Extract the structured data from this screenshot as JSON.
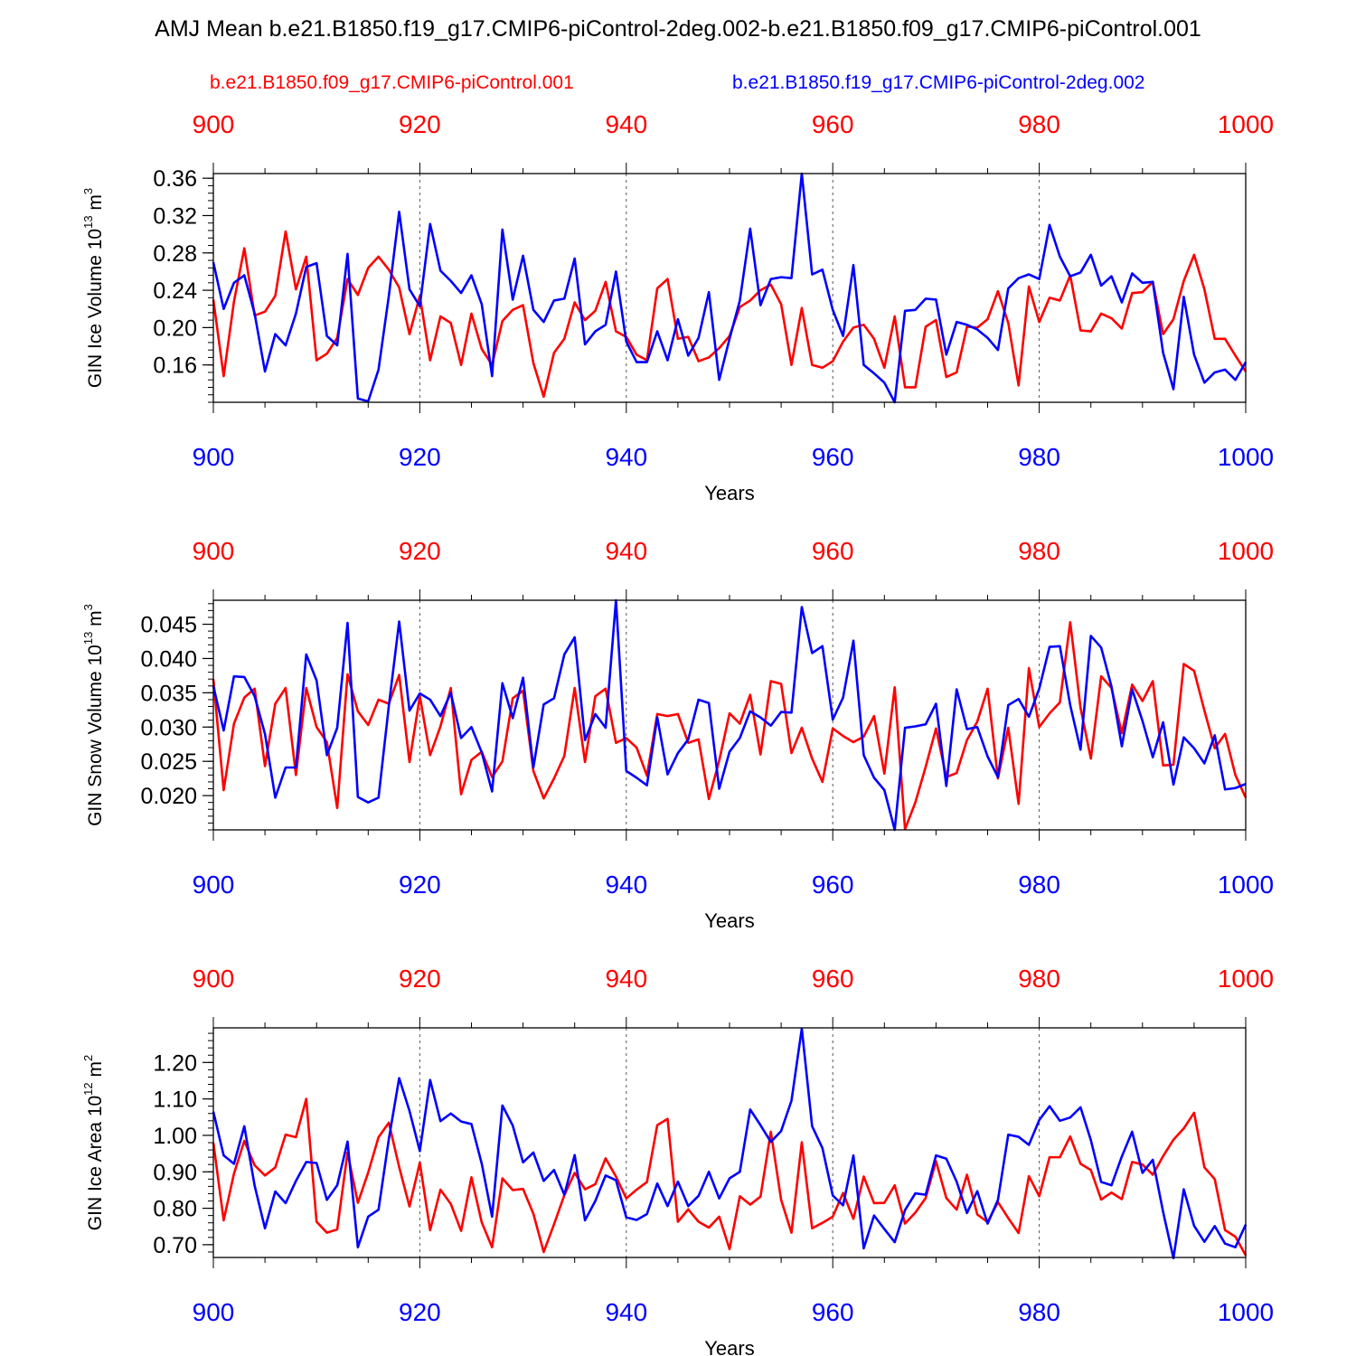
{
  "title": "AMJ Mean b.e21.B1850.f19_g17.CMIP6-piControl-2deg.002-b.e21.B1850.f09_g17.CMIP6-piControl.001",
  "legend": {
    "red_case": "b.e21.B1850.f09_g17.CMIP6-piControl.001",
    "blue_case": "b.e21.B1850.f19_g17.CMIP6-piControl-2deg.002"
  },
  "colors": {
    "red": "#ff0000",
    "blue": "#0000ff"
  },
  "chart_data": [
    {
      "type": "line",
      "id": "ice-volume",
      "ylabel": "GIN Ice Volume 10",
      "ylabel_sup": "13",
      "ylabel_unit": "m",
      "ylabel_unit_sup": "3",
      "xlabel": "Years",
      "xlim": [
        900,
        1000
      ],
      "ylim": [
        0.12,
        0.365
      ],
      "yticks": [
        "0.16",
        "0.20",
        "0.24",
        "0.28",
        "0.32",
        "0.36"
      ],
      "xticks": [
        "900",
        "920",
        "940",
        "960",
        "980",
        "1000"
      ],
      "x": [
        900,
        901,
        902,
        903,
        904,
        905,
        906,
        907,
        908,
        909,
        910,
        911,
        912,
        913,
        914,
        915,
        916,
        917,
        918,
        919,
        920,
        921,
        922,
        923,
        924,
        925,
        926,
        927,
        928,
        929,
        930,
        931,
        932,
        933,
        934,
        935,
        936,
        937,
        938,
        939,
        940,
        941,
        942,
        943,
        944,
        945,
        946,
        947,
        948,
        949,
        950,
        951,
        952,
        953,
        954,
        955,
        956,
        957,
        958,
        959,
        960,
        961,
        962,
        963,
        964,
        965,
        966,
        967,
        968,
        969,
        970,
        971,
        972,
        973,
        974,
        975,
        976,
        977,
        978,
        979,
        980,
        981,
        982,
        983,
        984,
        985,
        986,
        987,
        988,
        989,
        990,
        991,
        992,
        993,
        994,
        995,
        996,
        997,
        998,
        999,
        1000
      ],
      "series": [
        {
          "name": "b.e21.B1850.f09_g17.CMIP6-piControl.001",
          "color": "red",
          "values": [
            0.23,
            0.148,
            0.228,
            0.285,
            0.213,
            0.217,
            0.234,
            0.303,
            0.241,
            0.276,
            0.165,
            0.172,
            0.189,
            0.252,
            0.235,
            0.264,
            0.276,
            0.262,
            0.243,
            0.193,
            0.234,
            0.165,
            0.212,
            0.205,
            0.16,
            0.215,
            0.177,
            0.16,
            0.207,
            0.219,
            0.224,
            0.162,
            0.126,
            0.173,
            0.188,
            0.227,
            0.208,
            0.218,
            0.249,
            0.196,
            0.19,
            0.171,
            0.165,
            0.242,
            0.252,
            0.188,
            0.19,
            0.164,
            0.168,
            0.178,
            0.191,
            0.222,
            0.229,
            0.24,
            0.246,
            0.225,
            0.16,
            0.221,
            0.16,
            0.157,
            0.164,
            0.185,
            0.2,
            0.203,
            0.188,
            0.157,
            0.212,
            0.136,
            0.136,
            0.201,
            0.208,
            0.147,
            0.152,
            0.201,
            0.2,
            0.209,
            0.239,
            0.205,
            0.138,
            0.244,
            0.206,
            0.232,
            0.229,
            0.256,
            0.197,
            0.196,
            0.215,
            0.21,
            0.199,
            0.237,
            0.238,
            0.249,
            0.193,
            0.209,
            0.25,
            0.278,
            0.241,
            0.188,
            0.188,
            0.17,
            0.153
          ]
        },
        {
          "name": "b.e21.B1850.f19_g17.CMIP6-piControl-2deg.002",
          "color": "blue",
          "values": [
            0.27,
            0.22,
            0.248,
            0.256,
            0.215,
            0.153,
            0.193,
            0.181,
            0.215,
            0.265,
            0.269,
            0.191,
            0.181,
            0.279,
            0.124,
            0.121,
            0.155,
            0.234,
            0.324,
            0.241,
            0.223,
            0.311,
            0.261,
            0.25,
            0.237,
            0.256,
            0.225,
            0.148,
            0.305,
            0.23,
            0.277,
            0.219,
            0.206,
            0.229,
            0.231,
            0.274,
            0.182,
            0.196,
            0.203,
            0.26,
            0.185,
            0.163,
            0.163,
            0.196,
            0.165,
            0.209,
            0.17,
            0.189,
            0.238,
            0.144,
            0.188,
            0.229,
            0.306,
            0.224,
            0.252,
            0.254,
            0.253,
            0.365,
            0.257,
            0.262,
            0.219,
            0.191,
            0.267,
            0.16,
            0.151,
            0.141,
            0.12,
            0.218,
            0.219,
            0.231,
            0.23,
            0.171,
            0.206,
            0.203,
            0.198,
            0.189,
            0.176,
            0.242,
            0.253,
            0.257,
            0.252,
            0.31,
            0.276,
            0.255,
            0.259,
            0.278,
            0.245,
            0.255,
            0.227,
            0.258,
            0.248,
            0.249,
            0.173,
            0.134,
            0.233,
            0.171,
            0.141,
            0.152,
            0.155,
            0.144,
            0.163
          ]
        }
      ]
    },
    {
      "type": "line",
      "id": "snow-volume",
      "ylabel": "GIN Snow Volume 10",
      "ylabel_sup": "13",
      "ylabel_unit": "m",
      "ylabel_unit_sup": "3",
      "xlabel": "Years",
      "xlim": [
        900,
        1000
      ],
      "ylim": [
        0.015,
        0.0485
      ],
      "yticks": [
        "0.020",
        "0.025",
        "0.030",
        "0.035",
        "0.040",
        "0.045"
      ],
      "xticks": [
        "900",
        "920",
        "940",
        "960",
        "980",
        "1000"
      ],
      "x": [
        900,
        901,
        902,
        903,
        904,
        905,
        906,
        907,
        908,
        909,
        910,
        911,
        912,
        913,
        914,
        915,
        916,
        917,
        918,
        919,
        920,
        921,
        922,
        923,
        924,
        925,
        926,
        927,
        928,
        929,
        930,
        931,
        932,
        933,
        934,
        935,
        936,
        937,
        938,
        939,
        940,
        941,
        942,
        943,
        944,
        945,
        946,
        947,
        948,
        949,
        950,
        951,
        952,
        953,
        954,
        955,
        956,
        957,
        958,
        959,
        960,
        961,
        962,
        963,
        964,
        965,
        966,
        967,
        968,
        969,
        970,
        971,
        972,
        973,
        974,
        975,
        976,
        977,
        978,
        979,
        980,
        981,
        982,
        983,
        984,
        985,
        986,
        987,
        988,
        989,
        990,
        991,
        992,
        993,
        994,
        995,
        996,
        997,
        998,
        999,
        1000
      ],
      "series": [
        {
          "name": "b.e21.B1850.f09_g17.CMIP6-piControl.001",
          "color": "red",
          "values": [
            0.037,
            0.0208,
            0.0305,
            0.0343,
            0.0356,
            0.0243,
            0.0334,
            0.0357,
            0.023,
            0.0357,
            0.03,
            0.0278,
            0.0182,
            0.0377,
            0.0323,
            0.0303,
            0.034,
            0.0334,
            0.0376,
            0.0249,
            0.0345,
            0.0259,
            0.0301,
            0.0357,
            0.0202,
            0.0252,
            0.0264,
            0.0227,
            0.025,
            0.0342,
            0.0353,
            0.0236,
            0.0196,
            0.0225,
            0.0258,
            0.0357,
            0.0249,
            0.0345,
            0.0356,
            0.0277,
            0.0284,
            0.027,
            0.0229,
            0.0319,
            0.0316,
            0.0319,
            0.0277,
            0.0282,
            0.0195,
            0.0251,
            0.032,
            0.0305,
            0.0347,
            0.026,
            0.0367,
            0.0363,
            0.0262,
            0.0299,
            0.0254,
            0.022,
            0.0298,
            0.0287,
            0.0278,
            0.0286,
            0.0316,
            0.0232,
            0.0358,
            0.0151,
            0.019,
            0.0242,
            0.0298,
            0.0227,
            0.0233,
            0.0281,
            0.0308,
            0.0356,
            0.0225,
            0.0299,
            0.0188,
            0.0386,
            0.03,
            0.032,
            0.0336,
            0.0453,
            0.0328,
            0.0254,
            0.0374,
            0.0357,
            0.0291,
            0.0362,
            0.0338,
            0.0367,
            0.0244,
            0.0245,
            0.0392,
            0.0382,
            0.0324,
            0.0269,
            0.029,
            0.023,
            0.0197
          ]
        },
        {
          "name": "b.e21.B1850.f19_g17.CMIP6-piControl-2deg.002",
          "color": "blue",
          "values": [
            0.036,
            0.0295,
            0.0374,
            0.0373,
            0.0345,
            0.029,
            0.0197,
            0.0241,
            0.0241,
            0.0406,
            0.0368,
            0.0259,
            0.0299,
            0.0452,
            0.0198,
            0.019,
            0.0197,
            0.0331,
            0.0454,
            0.0324,
            0.0349,
            0.034,
            0.0316,
            0.035,
            0.0284,
            0.03,
            0.0263,
            0.0206,
            0.0364,
            0.0313,
            0.0372,
            0.0241,
            0.0333,
            0.0342,
            0.0406,
            0.0431,
            0.0281,
            0.0319,
            0.0299,
            0.0485,
            0.0236,
            0.0226,
            0.0215,
            0.0314,
            0.0231,
            0.0262,
            0.0282,
            0.034,
            0.0335,
            0.021,
            0.0264,
            0.0284,
            0.0323,
            0.0314,
            0.0302,
            0.0322,
            0.0321,
            0.0475,
            0.0408,
            0.0418,
            0.0311,
            0.0343,
            0.0426,
            0.0259,
            0.0226,
            0.0208,
            0.015,
            0.0299,
            0.0301,
            0.0304,
            0.0334,
            0.0214,
            0.0355,
            0.0297,
            0.03,
            0.0257,
            0.0227,
            0.0332,
            0.0341,
            0.0315,
            0.0356,
            0.0417,
            0.0418,
            0.0332,
            0.0267,
            0.0433,
            0.0416,
            0.0359,
            0.0272,
            0.0355,
            0.0309,
            0.0256,
            0.0307,
            0.0216,
            0.0285,
            0.0269,
            0.0247,
            0.0288,
            0.0209,
            0.0211,
            0.0217
          ]
        }
      ]
    },
    {
      "type": "line",
      "id": "ice-area",
      "ylabel": "GIN Ice Area 10",
      "ylabel_sup": "12",
      "ylabel_unit": "m",
      "ylabel_unit_sup": "2",
      "xlabel": "Years",
      "xlim": [
        900,
        1000
      ],
      "ylim": [
        0.665,
        1.295
      ],
      "yticks": [
        "0.70",
        "0.80",
        "0.90",
        "1.00",
        "1.10",
        "1.20"
      ],
      "xticks": [
        "900",
        "920",
        "940",
        "960",
        "980",
        "1000"
      ],
      "x": [
        900,
        901,
        902,
        903,
        904,
        905,
        906,
        907,
        908,
        909,
        910,
        911,
        912,
        913,
        914,
        915,
        916,
        917,
        918,
        919,
        920,
        921,
        922,
        923,
        924,
        925,
        926,
        927,
        928,
        929,
        930,
        931,
        932,
        933,
        934,
        935,
        936,
        937,
        938,
        939,
        940,
        941,
        942,
        943,
        944,
        945,
        946,
        947,
        948,
        949,
        950,
        951,
        952,
        953,
        954,
        955,
        956,
        957,
        958,
        959,
        960,
        961,
        962,
        963,
        964,
        965,
        966,
        967,
        968,
        969,
        970,
        971,
        972,
        973,
        974,
        975,
        976,
        977,
        978,
        979,
        980,
        981,
        982,
        983,
        984,
        985,
        986,
        987,
        988,
        989,
        990,
        991,
        992,
        993,
        994,
        995,
        996,
        997,
        998,
        999,
        1000
      ],
      "series": [
        {
          "name": "b.e21.B1850.f09_g17.CMIP6-piControl.001",
          "color": "red",
          "values": [
            0.98,
            0.767,
            0.895,
            0.985,
            0.918,
            0.89,
            0.912,
            1.002,
            0.995,
            1.1,
            0.763,
            0.733,
            0.742,
            0.953,
            0.815,
            0.898,
            0.995,
            1.035,
            0.913,
            0.805,
            0.925,
            0.74,
            0.851,
            0.812,
            0.738,
            0.885,
            0.761,
            0.693,
            0.882,
            0.85,
            0.853,
            0.785,
            0.68,
            0.756,
            0.836,
            0.897,
            0.852,
            0.866,
            0.937,
            0.887,
            0.827,
            0.851,
            0.872,
            1.028,
            1.045,
            0.763,
            0.797,
            0.763,
            0.747,
            0.777,
            0.688,
            0.833,
            0.81,
            0.832,
            1.01,
            0.823,
            0.733,
            0.981,
            0.745,
            0.76,
            0.777,
            0.842,
            0.771,
            0.887,
            0.814,
            0.815,
            0.863,
            0.758,
            0.788,
            0.828,
            0.929,
            0.828,
            0.796,
            0.892,
            0.783,
            0.762,
            0.817,
            0.773,
            0.732,
            0.888,
            0.833,
            0.94,
            0.94,
            0.997,
            0.922,
            0.905,
            0.824,
            0.843,
            0.825,
            0.927,
            0.92,
            0.892,
            0.943,
            0.988,
            1.019,
            1.062,
            0.912,
            0.88,
            0.74,
            0.722,
            0.671
          ]
        },
        {
          "name": "b.e21.B1850.f19_g17.CMIP6-piControl-2deg.002",
          "color": "blue",
          "values": [
            1.065,
            0.945,
            0.922,
            1.025,
            0.862,
            0.745,
            0.846,
            0.814,
            0.875,
            0.927,
            0.924,
            0.823,
            0.863,
            0.983,
            0.693,
            0.777,
            0.796,
            0.99,
            1.157,
            1.067,
            0.957,
            1.152,
            1.039,
            1.06,
            1.038,
            1.031,
            0.922,
            0.777,
            1.082,
            1.027,
            0.926,
            0.953,
            0.875,
            0.905,
            0.837,
            0.946,
            0.767,
            0.82,
            0.89,
            0.877,
            0.775,
            0.768,
            0.784,
            0.868,
            0.806,
            0.873,
            0.806,
            0.834,
            0.9,
            0.827,
            0.882,
            0.9,
            1.071,
            1.028,
            0.982,
            1.012,
            1.095,
            1.293,
            1.025,
            0.965,
            0.835,
            0.808,
            0.945,
            0.69,
            0.78,
            0.743,
            0.707,
            0.795,
            0.841,
            0.837,
            0.945,
            0.936,
            0.873,
            0.787,
            0.847,
            0.758,
            0.823,
            1.002,
            0.996,
            0.974,
            1.042,
            1.08,
            1.04,
            1.049,
            1.077,
            0.987,
            0.872,
            0.863,
            0.942,
            1.01,
            0.897,
            0.933,
            0.79,
            0.663,
            0.852,
            0.752,
            0.708,
            0.751,
            0.703,
            0.693,
            0.755
          ]
        }
      ]
    }
  ]
}
